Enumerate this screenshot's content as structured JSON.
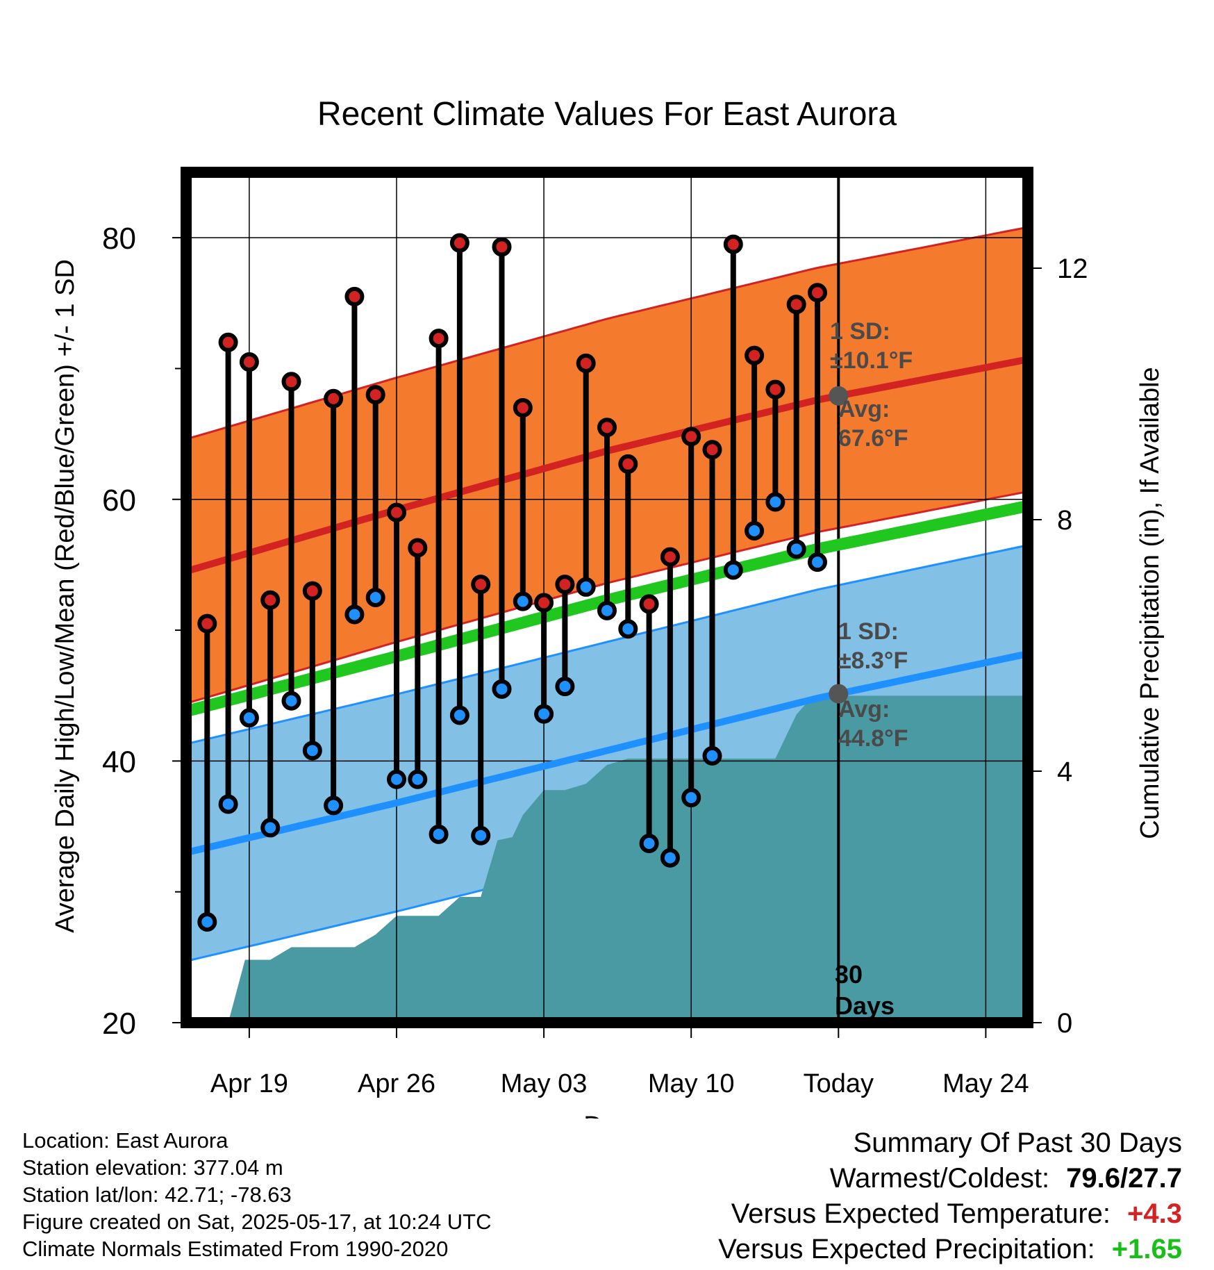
{
  "chart_data": {
    "type": "line",
    "title": "Recent Climate Values For East Aurora",
    "xlabel": "Day",
    "ylabel_left": "Average Daily High/Low/Mean (Red/Blue/Green) +/- 1 SD",
    "ylabel_right": "Cumulative Precipitation (in), If Available",
    "x_ticks": [
      "Apr 19",
      "Apr 26",
      "May 03",
      "May 10",
      "Today",
      "May 24"
    ],
    "x_tick_days": [
      3,
      10,
      17,
      24,
      31,
      38
    ],
    "x_range_days": [
      0,
      40
    ],
    "ylim_left": [
      20,
      85
    ],
    "y_ticks_left": [
      20,
      40,
      60,
      80
    ],
    "ylim_right": [
      0,
      12
    ],
    "y_ticks_right": [
      0,
      4,
      8,
      12
    ],
    "grid": true,
    "series": [
      {
        "name": "High",
        "color": "#d32222",
        "days": [
          1,
          2,
          3,
          4,
          5,
          6,
          7,
          8,
          9,
          10,
          11,
          12,
          13,
          14,
          15,
          16,
          17,
          18,
          19,
          20,
          21,
          22,
          23,
          24,
          25,
          26,
          27,
          28,
          29,
          30
        ],
        "values": [
          50.5,
          72,
          70.5,
          52.3,
          69,
          53,
          67.7,
          75.5,
          68,
          59,
          56.3,
          72.3,
          79.6,
          53.5,
          79.3,
          67,
          52.1,
          53.5,
          70.4,
          65.5,
          62.7,
          52,
          55.6,
          64.8,
          63.8,
          79.5,
          71,
          68.4,
          74.9,
          75.8
        ]
      },
      {
        "name": "Low",
        "color": "#1e90ff",
        "days": [
          1,
          2,
          3,
          4,
          5,
          6,
          7,
          8,
          9,
          10,
          11,
          12,
          13,
          14,
          15,
          16,
          17,
          18,
          19,
          20,
          21,
          22,
          23,
          24,
          25,
          26,
          27,
          28,
          29,
          30
        ],
        "values": [
          27.7,
          36.7,
          43.3,
          34.9,
          44.6,
          40.8,
          36.6,
          51.2,
          52.5,
          38.6,
          38.6,
          34.4,
          43.5,
          34.3,
          45.5,
          52.2,
          43.6,
          45.7,
          53.3,
          51.5,
          50.1,
          33.7,
          32.6,
          37.2,
          40.4,
          54.6,
          57.6,
          59.8,
          56.2,
          55.2
        ]
      },
      {
        "name": "Avg High",
        "color": "#d32222",
        "days": [
          0,
          10,
          20,
          30,
          40
        ],
        "values": [
          54.5,
          59.2,
          63.7,
          67.6,
          70.7
        ],
        "sd": 10.1
      },
      {
        "name": "Avg Low",
        "color": "#1e90ff",
        "days": [
          0,
          10,
          20,
          30,
          40
        ],
        "values": [
          33.0,
          36.8,
          40.8,
          44.8,
          48.2
        ],
        "sd": 8.3
      },
      {
        "name": "Mean",
        "color": "#1fc71f",
        "days": [
          0,
          10,
          20,
          30,
          40
        ],
        "values": [
          43.8,
          48.0,
          52.3,
          56.2,
          59.5
        ]
      },
      {
        "name": "Cumulative Precipitation",
        "color": "#4a9aa3",
        "days": [
          2,
          2.8,
          4,
          5,
          6,
          7,
          8,
          9,
          10,
          11,
          12,
          13,
          14,
          14.8,
          15.5,
          16,
          17,
          18,
          19,
          20,
          21,
          22,
          23,
          24,
          25,
          26,
          27,
          28,
          29,
          29.8,
          30.2,
          31,
          40
        ],
        "values": [
          0,
          1.0,
          1.0,
          1.2,
          1.2,
          1.2,
          1.2,
          1.4,
          1.7,
          1.7,
          1.7,
          2.0,
          2.0,
          2.9,
          2.95,
          3.3,
          3.7,
          3.7,
          3.8,
          4.1,
          4.2,
          4.2,
          4.2,
          4.2,
          4.2,
          4.2,
          4.2,
          4.2,
          4.9,
          5.2,
          5.2,
          5.2,
          5.2
        ]
      }
    ],
    "annotations": {
      "high_sd_label1": "1 SD:",
      "high_sd_label2": "±10.1°F",
      "high_avg_label1": "Avg:",
      "high_avg_label2": "67.6°F",
      "low_sd_label1": "1 SD:",
      "low_sd_label2": "±8.3°F",
      "low_avg_label1": "Avg:",
      "low_avg_label2": "44.8°F",
      "days_label1": "30",
      "days_label2": "Days"
    }
  },
  "info": {
    "location": "Location: East Aurora",
    "elevation": "Station elevation: 377.04 m",
    "latlon": "Station lat/lon: 42.71; -78.63",
    "created": "Figure created on Sat, 2025-05-17, at 10:24 UTC",
    "normals": "Climate Normals Estimated From 1990-2020"
  },
  "summary": {
    "title": "Summary Of Past 30 Days",
    "warm_label": "Warmest/Coldest:",
    "warm_value": "79.6/27.7",
    "temp_label": "Versus Expected Temperature:",
    "temp_value": "+4.3",
    "precip_label": "Versus Expected Precipitation:",
    "precip_value": "+1.65"
  }
}
